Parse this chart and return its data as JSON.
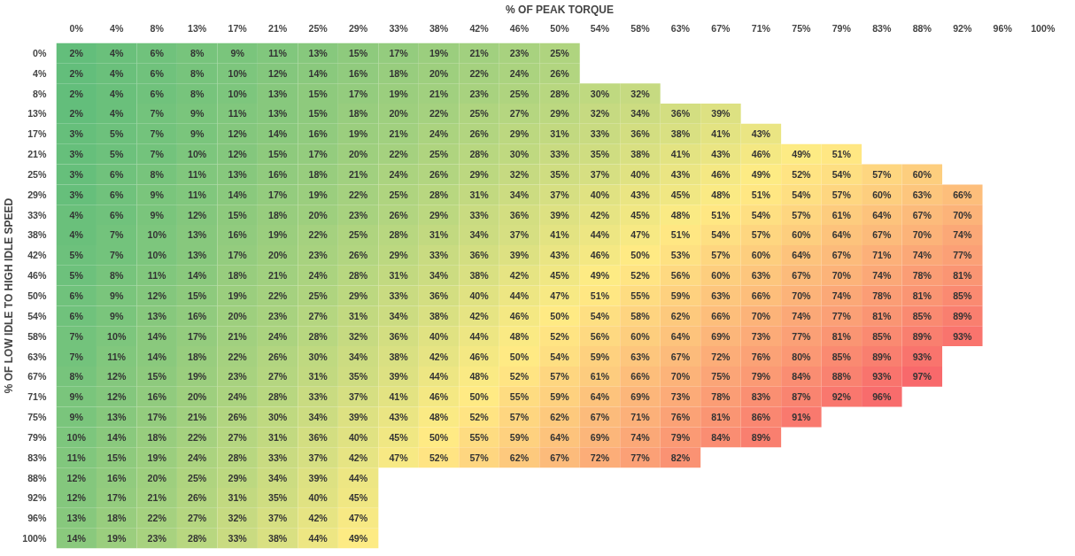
{
  "chart_data": {
    "type": "heatmap",
    "xlabel": "% OF PEAK TORQUE",
    "ylabel": "% OF LOW IDLE TO HIGH IDLE SPEED",
    "categories": [
      "0%",
      "4%",
      "8%",
      "13%",
      "17%",
      "21%",
      "25%",
      "29%",
      "33%",
      "38%",
      "42%",
      "46%",
      "50%",
      "54%",
      "58%",
      "63%",
      "67%",
      "71%",
      "75%",
      "79%",
      "83%",
      "88%",
      "92%",
      "96%",
      "100%"
    ],
    "y_categories": [
      "0%",
      "4%",
      "8%",
      "13%",
      "17%",
      "21%",
      "25%",
      "29%",
      "33%",
      "38%",
      "42%",
      "46%",
      "50%",
      "54%",
      "58%",
      "63%",
      "67%",
      "71%",
      "75%",
      "79%",
      "83%",
      "88%",
      "92%",
      "96%",
      "100%"
    ],
    "colors": [
      "#63be7b",
      "#ffeb84",
      "#f8696b"
    ],
    "cells": [
      [
        2,
        4,
        6,
        8,
        9,
        11,
        13,
        15,
        17,
        19,
        21,
        23,
        25,
        null,
        null,
        null,
        null,
        null,
        null,
        null,
        null,
        null,
        null,
        null,
        null
      ],
      [
        2,
        4,
        6,
        8,
        10,
        12,
        14,
        16,
        18,
        20,
        22,
        24,
        26,
        null,
        null,
        null,
        null,
        null,
        null,
        null,
        null,
        null,
        null,
        null,
        null
      ],
      [
        2,
        4,
        6,
        8,
        10,
        13,
        15,
        17,
        19,
        21,
        23,
        25,
        28,
        30,
        32,
        null,
        null,
        null,
        null,
        null,
        null,
        null,
        null,
        null,
        null
      ],
      [
        2,
        4,
        7,
        9,
        11,
        13,
        15,
        18,
        20,
        22,
        25,
        27,
        29,
        32,
        34,
        36,
        39,
        null,
        null,
        null,
        null,
        null,
        null,
        null,
        null
      ],
      [
        3,
        5,
        7,
        9,
        12,
        14,
        16,
        19,
        21,
        24,
        26,
        29,
        31,
        33,
        36,
        38,
        41,
        43,
        null,
        null,
        null,
        null,
        null,
        null,
        null
      ],
      [
        3,
        5,
        7,
        10,
        12,
        15,
        17,
        20,
        22,
        25,
        28,
        30,
        33,
        35,
        38,
        41,
        43,
        46,
        49,
        51,
        null,
        null,
        null,
        null,
        null
      ],
      [
        3,
        6,
        8,
        11,
        13,
        16,
        18,
        21,
        24,
        26,
        29,
        32,
        35,
        37,
        40,
        43,
        46,
        49,
        52,
        54,
        57,
        60,
        null,
        null,
        null
      ],
      [
        3,
        6,
        9,
        11,
        14,
        17,
        19,
        22,
        25,
        28,
        31,
        34,
        37,
        40,
        43,
        45,
        48,
        51,
        54,
        57,
        60,
        63,
        66,
        null,
        null
      ],
      [
        4,
        6,
        9,
        12,
        15,
        18,
        20,
        23,
        26,
        29,
        33,
        36,
        39,
        42,
        45,
        48,
        51,
        54,
        57,
        61,
        64,
        67,
        70,
        null,
        null
      ],
      [
        4,
        7,
        10,
        13,
        16,
        19,
        22,
        25,
        28,
        31,
        34,
        37,
        41,
        44,
        47,
        51,
        54,
        57,
        60,
        64,
        67,
        70,
        74,
        null,
        null
      ],
      [
        5,
        7,
        10,
        13,
        17,
        20,
        23,
        26,
        29,
        33,
        36,
        39,
        43,
        46,
        50,
        53,
        57,
        60,
        64,
        67,
        71,
        74,
        77,
        null,
        null
      ],
      [
        5,
        8,
        11,
        14,
        18,
        21,
        24,
        28,
        31,
        34,
        38,
        42,
        45,
        49,
        52,
        56,
        60,
        63,
        67,
        70,
        74,
        78,
        81,
        null,
        null
      ],
      [
        6,
        9,
        12,
        15,
        19,
        22,
        25,
        29,
        33,
        36,
        40,
        44,
        47,
        51,
        55,
        59,
        63,
        66,
        70,
        74,
        78,
        81,
        85,
        null,
        null
      ],
      [
        6,
        9,
        13,
        16,
        20,
        23,
        27,
        31,
        34,
        38,
        42,
        46,
        50,
        54,
        58,
        62,
        66,
        70,
        74,
        77,
        81,
        85,
        89,
        null,
        null
      ],
      [
        7,
        10,
        14,
        17,
        21,
        24,
        28,
        32,
        36,
        40,
        44,
        48,
        52,
        56,
        60,
        64,
        69,
        73,
        77,
        81,
        85,
        89,
        93,
        null,
        null
      ],
      [
        7,
        11,
        14,
        18,
        22,
        26,
        30,
        34,
        38,
        42,
        46,
        50,
        54,
        59,
        63,
        67,
        72,
        76,
        80,
        85,
        89,
        93,
        null,
        null,
        null
      ],
      [
        8,
        12,
        15,
        19,
        23,
        27,
        31,
        35,
        39,
        44,
        48,
        52,
        57,
        61,
        66,
        70,
        75,
        79,
        84,
        88,
        93,
        97,
        null,
        null,
        null
      ],
      [
        9,
        12,
        16,
        20,
        24,
        28,
        33,
        37,
        41,
        46,
        50,
        55,
        59,
        64,
        69,
        73,
        78,
        83,
        87,
        92,
        96,
        null,
        null,
        null,
        null
      ],
      [
        9,
        13,
        17,
        21,
        26,
        30,
        34,
        39,
        43,
        48,
        52,
        57,
        62,
        67,
        71,
        76,
        81,
        86,
        91,
        null,
        null,
        null,
        null,
        null,
        null
      ],
      [
        10,
        14,
        18,
        22,
        27,
        31,
        36,
        40,
        45,
        50,
        55,
        59,
        64,
        69,
        74,
        79,
        84,
        89,
        null,
        null,
        null,
        null,
        null,
        null,
        null
      ],
      [
        11,
        15,
        19,
        24,
        28,
        33,
        37,
        42,
        47,
        52,
        57,
        62,
        67,
        72,
        77,
        82,
        null,
        null,
        null,
        null,
        null,
        null,
        null,
        null,
        null
      ],
      [
        12,
        16,
        20,
        25,
        29,
        34,
        39,
        44,
        null,
        null,
        null,
        null,
        null,
        null,
        null,
        null,
        null,
        null,
        null,
        null,
        null,
        null,
        null,
        null,
        null
      ],
      [
        12,
        17,
        21,
        26,
        31,
        35,
        40,
        45,
        null,
        null,
        null,
        null,
        null,
        null,
        null,
        null,
        null,
        null,
        null,
        null,
        null,
        null,
        null,
        null,
        null
      ],
      [
        13,
        18,
        22,
        27,
        32,
        37,
        42,
        47,
        null,
        null,
        null,
        null,
        null,
        null,
        null,
        null,
        null,
        null,
        null,
        null,
        null,
        null,
        null,
        null,
        null
      ],
      [
        14,
        19,
        23,
        28,
        33,
        38,
        44,
        49,
        null,
        null,
        null,
        null,
        null,
        null,
        null,
        null,
        null,
        null,
        null,
        null,
        null,
        null,
        null,
        null,
        null
      ]
    ],
    "cell_labels": [
      [
        "2%",
        "4%",
        "6%",
        "8%",
        "9%",
        "11%",
        "13%",
        "15%",
        "17%",
        "19%",
        "21%",
        "23%",
        "25%",
        null,
        null,
        null,
        null,
        null,
        null,
        null,
        null,
        null,
        null,
        null,
        null
      ],
      [
        "2%",
        "4%",
        "6%",
        "8%",
        "10%",
        "12%",
        "14%",
        "16%",
        "18%",
        "20%",
        "22%",
        "24%",
        "26%",
        null,
        null,
        null,
        null,
        null,
        null,
        null,
        null,
        null,
        null,
        null,
        null
      ],
      [
        "2%",
        "4%",
        "6%",
        "8%",
        "10%",
        "13%",
        "15%",
        "17%",
        "19%",
        "21%",
        "23%",
        "25%",
        "28%",
        "30%",
        "32%",
        null,
        null,
        null,
        null,
        null,
        null,
        null,
        null,
        null,
        null
      ],
      [
        "2%",
        "4%",
        "7%",
        "9%",
        "11%",
        "13%",
        "15%",
        "18%",
        "20%",
        "22%",
        "25%",
        "27%",
        "29%",
        "32%",
        "34%",
        "36%",
        "39%",
        null,
        null,
        null,
        null,
        null,
        null,
        null,
        null
      ],
      [
        "3%",
        "5%",
        "7%",
        "9%",
        "12%",
        "14%",
        "16%",
        "19%",
        "21%",
        "24%",
        "26%",
        "29%",
        "31%",
        "33%",
        "36%",
        "38%",
        "41%",
        "43%",
        null,
        null,
        null,
        null,
        null,
        null,
        null
      ],
      [
        "3%",
        "5%",
        "7%",
        "10%",
        "12%",
        "15%",
        "17%",
        "20%",
        "22%",
        "25%",
        "28%",
        "30%",
        "33%",
        "35%",
        "38%",
        "41%",
        "43%",
        "46%",
        "49%",
        "51%",
        null,
        null,
        null,
        null,
        null
      ],
      [
        "3%",
        "6%",
        "8%",
        "11%",
        "13%",
        "16%",
        "18%",
        "21%",
        "24%",
        "26%",
        "29%",
        "32%",
        "35%",
        "37%",
        "40%",
        "43%",
        "46%",
        "49%",
        "52%",
        "54%",
        "57%",
        "60%",
        null,
        null,
        null
      ],
      [
        "3%",
        "6%",
        "9%",
        "11%",
        "14%",
        "17%",
        "19%",
        "22%",
        "25%",
        "28%",
        "31%",
        "34%",
        "37%",
        "40%",
        "43%",
        "45%",
        "48%",
        "51%",
        "54%",
        "57%",
        "60%",
        "63%",
        "66%",
        null,
        null
      ],
      [
        "4%",
        "6%",
        "9%",
        "12%",
        "15%",
        "18%",
        "20%",
        "23%",
        "26%",
        "29%",
        "33%",
        "36%",
        "39%",
        "42%",
        "45%",
        "48%",
        "51%",
        "54%",
        "57%",
        "61%",
        "64%",
        "67%",
        "70%",
        null,
        null
      ],
      [
        "4%",
        "7%",
        "10%",
        "13%",
        "16%",
        "19%",
        "22%",
        "25%",
        "28%",
        "31%",
        "34%",
        "37%",
        "41%",
        "44%",
        "47%",
        "51%",
        "54%",
        "57%",
        "60%",
        "64%",
        "67%",
        "70%",
        "74%",
        null,
        null
      ],
      [
        "5%",
        "7%",
        "10%",
        "13%",
        "17%",
        "20%",
        "23%",
        "26%",
        "29%",
        "33%",
        "36%",
        "39%",
        "43%",
        "46%",
        "50%",
        "53%",
        "57%",
        "60%",
        "64%",
        "67%",
        "71%",
        "74%",
        "77%",
        null,
        null
      ],
      [
        "5%",
        "8%",
        "11%",
        "14%",
        "18%",
        "21%",
        "24%",
        "28%",
        "31%",
        "34%",
        "38%",
        "42%",
        "45%",
        "49%",
        "52%",
        "56%",
        "60%",
        "63%",
        "67%",
        "70%",
        "74%",
        "78%",
        "81%",
        null,
        null
      ],
      [
        "6%",
        "9%",
        "12%",
        "15%",
        "19%",
        "22%",
        "25%",
        "29%",
        "33%",
        "36%",
        "40%",
        "44%",
        "47%",
        "51%",
        "55%",
        "59%",
        "63%",
        "66%",
        "70%",
        "74%",
        "78%",
        "81%",
        "85%",
        null,
        null
      ],
      [
        "6%",
        "9%",
        "13%",
        "16%",
        "20%",
        "23%",
        "27%",
        "31%",
        "34%",
        "38%",
        "42%",
        "46%",
        "50%",
        "54%",
        "58%",
        "62%",
        "66%",
        "70%",
        "74%",
        "77%",
        "81%",
        "85%",
        "89%",
        null,
        null
      ],
      [
        "7%",
        "10%",
        "14%",
        "17%",
        "21%",
        "24%",
        "28%",
        "32%",
        "36%",
        "40%",
        "44%",
        "48%",
        "52%",
        "56%",
        "60%",
        "64%",
        "69%",
        "73%",
        "77%",
        "81%",
        "85%",
        "89%",
        "93%",
        null,
        null
      ],
      [
        "7%",
        "11%",
        "14%",
        "18%",
        "22%",
        "26%",
        "30%",
        "34%",
        "38%",
        "42%",
        "46%",
        "50%",
        "54%",
        "59%",
        "63%",
        "67%",
        "72%",
        "76%",
        "80%",
        "85%",
        "89%",
        "93%",
        null,
        null,
        null
      ],
      [
        "8%",
        "12%",
        "15%",
        "19%",
        "23%",
        "27%",
        "31%",
        "35%",
        "39%",
        "44%",
        "48%",
        "52%",
        "57%",
        "61%",
        "66%",
        "70%",
        "75%",
        "79%",
        "84%",
        "88%",
        "93%",
        "97%",
        null,
        null,
        null
      ],
      [
        "9%",
        "12%",
        "16%",
        "20%",
        "24%",
        "28%",
        "33%",
        "37%",
        "41%",
        "46%",
        "50%",
        "55%",
        "59%",
        "64%",
        "69%",
        "73%",
        "78%",
        "83%",
        "87%",
        "92%",
        "96%",
        null,
        null,
        null,
        null
      ],
      [
        "9%",
        "13%",
        "17%",
        "21%",
        "26%",
        "30%",
        "34%",
        "39%",
        "43%",
        "48%",
        "52%",
        "57%",
        "62%",
        "67%",
        "71%",
        "76%",
        "81%",
        "86%",
        "91%",
        null,
        null,
        null,
        null,
        null,
        null
      ],
      [
        "10%",
        "14%",
        "18%",
        "22%",
        "27%",
        "31%",
        "36%",
        "40%",
        "45%",
        "50%",
        "55%",
        "59%",
        "64%",
        "69%",
        "74%",
        "79%",
        "84%",
        "89%",
        null,
        null,
        null,
        null,
        null,
        null,
        null
      ],
      [
        "11%",
        "15%",
        "19%",
        "24%",
        "28%",
        "33%",
        "37%",
        "42%",
        "47%",
        "52%",
        "57%",
        "62%",
        "67%",
        "72%",
        "77%",
        "82%",
        null,
        null,
        null,
        null,
        null,
        null,
        null,
        null,
        null
      ],
      [
        "12%",
        "16%",
        "20%",
        "25%",
        "29%",
        "34%",
        "39%",
        "44%",
        null,
        null,
        null,
        null,
        null,
        null,
        null,
        null,
        null,
        null,
        null,
        null,
        null,
        null,
        null,
        null,
        null
      ],
      [
        "12%",
        "17%",
        "21%",
        "26%",
        "31%",
        "35%",
        "40%",
        "45%",
        null,
        null,
        null,
        null,
        null,
        null,
        null,
        null,
        null,
        null,
        null,
        null,
        null,
        null,
        null,
        null,
        null
      ],
      [
        "13%",
        "18%",
        "22%",
        "27%",
        "32%",
        "37%",
        "42%",
        "47%",
        null,
        null,
        null,
        null,
        null,
        null,
        null,
        null,
        null,
        null,
        null,
        null,
        null,
        null,
        null,
        null,
        null
      ],
      [
        "14%",
        "19%",
        "23%",
        "28%",
        "33%",
        "38%",
        "44%",
        "49%",
        null,
        null,
        null,
        null,
        null,
        null,
        null,
        null,
        null,
        null,
        null,
        null,
        null,
        null,
        null,
        null,
        null
      ]
    ]
  }
}
